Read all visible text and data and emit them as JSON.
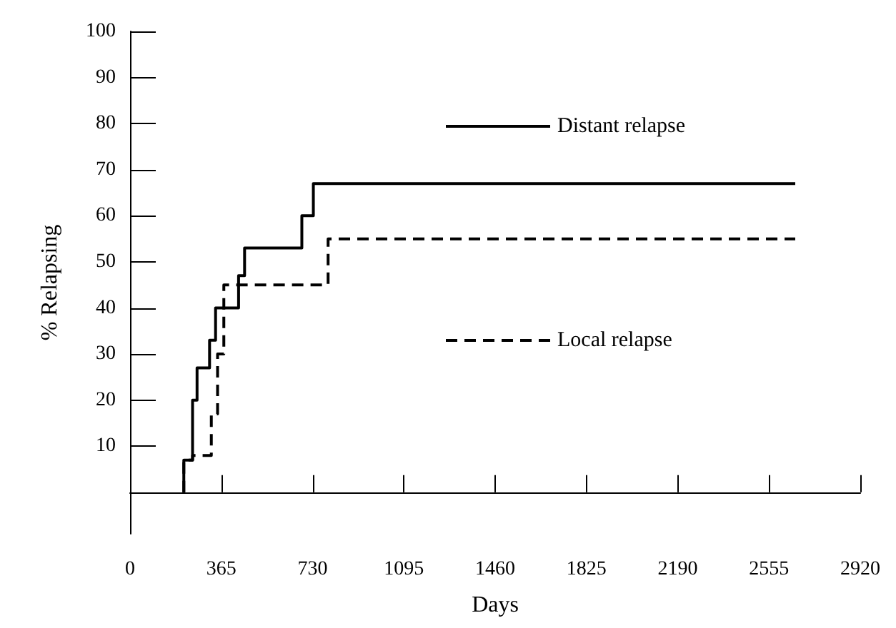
{
  "chart_data": {
    "type": "step",
    "xlabel": "Days",
    "ylabel": "% Relapsing",
    "xlim": [
      0,
      2920
    ],
    "xticks": [
      0,
      365,
      730,
      1095,
      1460,
      1825,
      2190,
      2555,
      2920
    ],
    "ylim": [
      -9,
      100
    ],
    "yticks": [
      10,
      20,
      30,
      40,
      50,
      60,
      70,
      80,
      90,
      100
    ],
    "legend": "right",
    "grid": false,
    "marker": "none",
    "series": [
      {
        "name": "Distant relapse",
        "color": "#000000",
        "line_style": "solid",
        "x": [
          215,
          215,
          250,
          268,
          318,
          342,
          434,
          458,
          687,
          733,
          2660
        ],
        "values": [
          0,
          7,
          20,
          27,
          33,
          40,
          47,
          53,
          60,
          67,
          67
        ]
      },
      {
        "name": "Local relapse",
        "color": "#000000",
        "line_style": "dashed",
        "x": [
          215,
          215,
          250,
          325,
          350,
          375,
          792,
          2660
        ],
        "values": [
          0,
          7,
          8,
          17,
          30,
          45,
          55,
          55
        ]
      }
    ]
  }
}
